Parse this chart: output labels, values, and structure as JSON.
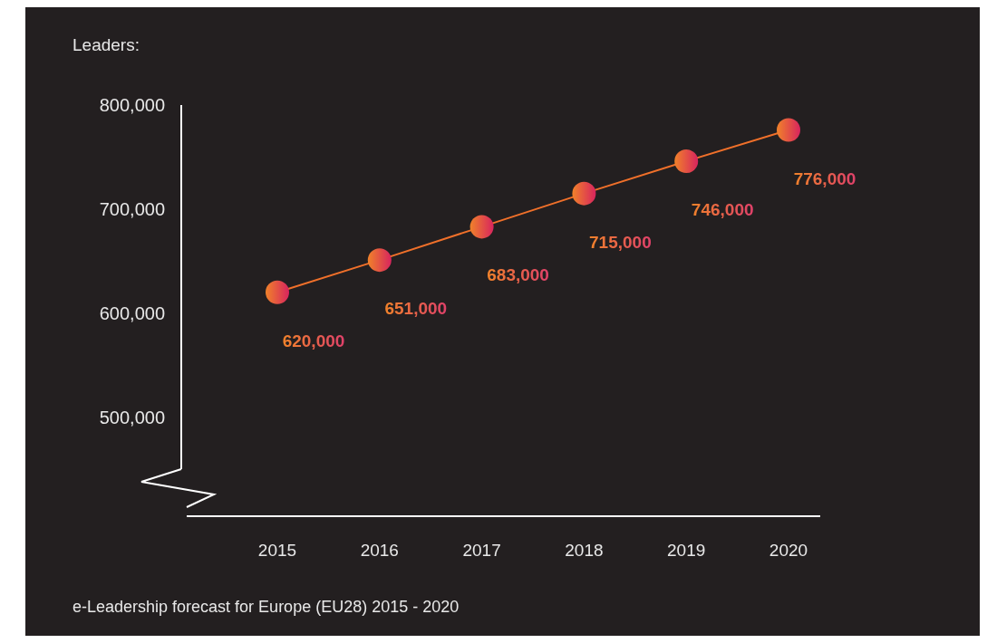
{
  "chart_data": {
    "type": "line",
    "title": "e-Leadership forecast for Europe (EU28) 2015 - 2020",
    "ylabel": "Leaders:",
    "categories": [
      "2015",
      "2016",
      "2017",
      "2018",
      "2019",
      "2020"
    ],
    "series": [
      {
        "color": "#f0702a",
        "values": [
          620000,
          651000,
          683000,
          715000,
          746000,
          776000
        ],
        "value_labels": [
          "620,000",
          "651,000",
          "683,000",
          "715,000",
          "746,000",
          "776,000"
        ]
      }
    ],
    "ylim": [
      450000,
      800000
    ],
    "yticks": [
      {
        "value": 500000,
        "label": "500,000"
      },
      {
        "value": 600000,
        "label": "600,000"
      },
      {
        "value": 700000,
        "label": "700,000"
      },
      {
        "value": 800000,
        "label": "800,000"
      }
    ],
    "marker": "circle"
  }
}
